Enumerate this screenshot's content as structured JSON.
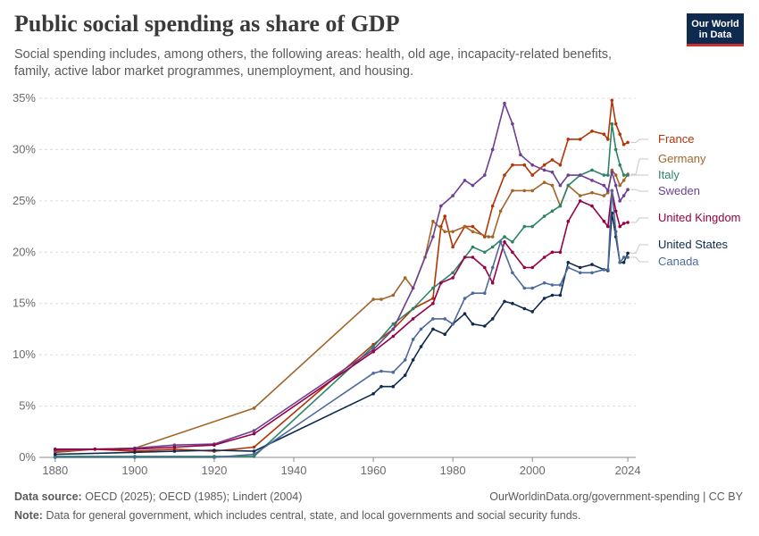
{
  "header": {
    "title": "Public social spending as share of GDP",
    "subtitle": "Social spending includes, among others, the following areas: health, old age, incapacity-related benefits, family, active labor market programmes, unemployment, and housing."
  },
  "logo": {
    "line1": "Our World",
    "line2": "in Data"
  },
  "footer": {
    "source_label": "Data source:",
    "source_text": "OECD (2025); OECD (1985); Lindert (2004)",
    "url": "OurWorldinData.org/government-spending | CC BY",
    "note_label": "Note:",
    "note_text": "Data for general government, which includes central, state, and local governments and social security funds."
  },
  "chart_data": {
    "type": "line",
    "title": "Public social spending as share of GDP",
    "xlabel": "",
    "ylabel": "",
    "xlim": [
      1876,
      2026
    ],
    "ylim": [
      0,
      35
    ],
    "x_ticks": [
      1880,
      1900,
      1920,
      1940,
      1960,
      1980,
      2000,
      2024
    ],
    "y_ticks": [
      0,
      5,
      10,
      15,
      20,
      25,
      30,
      35
    ],
    "y_tick_labels": [
      "0%",
      "5%",
      "10%",
      "15%",
      "20%",
      "25%",
      "30%",
      "35%"
    ],
    "grid": "horizontal-dashed",
    "series": [
      {
        "name": "France",
        "color": "#b13507",
        "points": [
          [
            1880,
            0.5
          ],
          [
            1890,
            0.8
          ],
          [
            1900,
            0.6
          ],
          [
            1910,
            0.8
          ],
          [
            1920,
            0.6
          ],
          [
            1930,
            1.0
          ],
          [
            1960,
            11.0
          ],
          [
            1965,
            12.5
          ],
          [
            1970,
            14.5
          ],
          [
            1975,
            15.5
          ],
          [
            1977,
            22.5
          ],
          [
            1978,
            23.5
          ],
          [
            1980,
            20.5
          ],
          [
            1983,
            22.5
          ],
          [
            1985,
            22.5
          ],
          [
            1988,
            21.5
          ],
          [
            1990,
            24.5
          ],
          [
            1993,
            27.5
          ],
          [
            1995,
            28.5
          ],
          [
            1998,
            28.5
          ],
          [
            2000,
            27.5
          ],
          [
            2003,
            28.5
          ],
          [
            2005,
            29.0
          ],
          [
            2007,
            28.5
          ],
          [
            2009,
            31.0
          ],
          [
            2012,
            31.0
          ],
          [
            2015,
            31.8
          ],
          [
            2018,
            31.5
          ],
          [
            2019,
            31.0
          ],
          [
            2020,
            34.8
          ],
          [
            2021,
            32.5
          ],
          [
            2022,
            31.5
          ],
          [
            2023,
            30.5
          ],
          [
            2024,
            30.7
          ]
        ]
      },
      {
        "name": "Germany",
        "color": "#a2652a",
        "points": [
          [
            1880,
            0.6
          ],
          [
            1890,
            0.8
          ],
          [
            1900,
            0.9
          ],
          [
            1930,
            4.8
          ],
          [
            1960,
            15.4
          ],
          [
            1962,
            15.4
          ],
          [
            1965,
            15.8
          ],
          [
            1968,
            17.5
          ],
          [
            1970,
            16.5
          ],
          [
            1973,
            19.5
          ],
          [
            1975,
            23.0
          ],
          [
            1978,
            22.0
          ],
          [
            1980,
            22.0
          ],
          [
            1983,
            22.5
          ],
          [
            1985,
            22.0
          ],
          [
            1989,
            21.5
          ],
          [
            1990,
            21.5
          ],
          [
            1992,
            24.0
          ],
          [
            1995,
            26.0
          ],
          [
            1998,
            26.0
          ],
          [
            2000,
            26.0
          ],
          [
            2003,
            26.8
          ],
          [
            2005,
            26.5
          ],
          [
            2007,
            24.5
          ],
          [
            2009,
            26.5
          ],
          [
            2012,
            25.5
          ],
          [
            2015,
            25.8
          ],
          [
            2018,
            25.5
          ],
          [
            2019,
            25.8
          ],
          [
            2020,
            28.0
          ],
          [
            2021,
            27.5
          ],
          [
            2022,
            26.5
          ],
          [
            2023,
            27.0
          ],
          [
            2024,
            27.6
          ]
        ]
      },
      {
        "name": "Italy",
        "color": "#2c8465",
        "points": [
          [
            1880,
            0.1
          ],
          [
            1900,
            0.1
          ],
          [
            1920,
            0.1
          ],
          [
            1930,
            0.1
          ],
          [
            1960,
            10.8
          ],
          [
            1965,
            13.0
          ],
          [
            1970,
            14.5
          ],
          [
            1975,
            16.5
          ],
          [
            1980,
            18.0
          ],
          [
            1985,
            20.5
          ],
          [
            1988,
            20.0
          ],
          [
            1990,
            20.5
          ],
          [
            1993,
            21.5
          ],
          [
            1995,
            21.0
          ],
          [
            1998,
            22.5
          ],
          [
            2000,
            22.5
          ],
          [
            2003,
            23.5
          ],
          [
            2005,
            24.0
          ],
          [
            2007,
            24.5
          ],
          [
            2009,
            26.5
          ],
          [
            2012,
            27.5
          ],
          [
            2015,
            28.0
          ],
          [
            2018,
            27.5
          ],
          [
            2019,
            27.5
          ],
          [
            2020,
            32.5
          ],
          [
            2021,
            30.0
          ],
          [
            2022,
            28.5
          ],
          [
            2023,
            27.5
          ],
          [
            2024,
            27.5
          ]
        ]
      },
      {
        "name": "Sweden",
        "color": "#6d3e91",
        "points": [
          [
            1880,
            0.7
          ],
          [
            1890,
            0.8
          ],
          [
            1900,
            0.9
          ],
          [
            1910,
            1.2
          ],
          [
            1920,
            1.3
          ],
          [
            1930,
            2.6
          ],
          [
            1960,
            10.5
          ],
          [
            1965,
            12.5
          ],
          [
            1970,
            16.5
          ],
          [
            1975,
            21.5
          ],
          [
            1977,
            24.5
          ],
          [
            1980,
            25.5
          ],
          [
            1983,
            27.0
          ],
          [
            1985,
            26.5
          ],
          [
            1988,
            27.5
          ],
          [
            1990,
            30.0
          ],
          [
            1993,
            34.5
          ],
          [
            1995,
            32.5
          ],
          [
            1997,
            29.5
          ],
          [
            2000,
            28.5
          ],
          [
            2003,
            28.0
          ],
          [
            2005,
            27.8
          ],
          [
            2007,
            26.5
          ],
          [
            2009,
            27.5
          ],
          [
            2012,
            27.5
          ],
          [
            2015,
            27.0
          ],
          [
            2018,
            26.5
          ],
          [
            2019,
            26.0
          ],
          [
            2020,
            27.8
          ],
          [
            2021,
            26.5
          ],
          [
            2022,
            25.0
          ],
          [
            2023,
            25.5
          ],
          [
            2024,
            26.1
          ]
        ]
      },
      {
        "name": "United Kingdom",
        "color": "#970046",
        "points": [
          [
            1880,
            0.8
          ],
          [
            1890,
            0.8
          ],
          [
            1900,
            0.8
          ],
          [
            1910,
            1.0
          ],
          [
            1920,
            1.2
          ],
          [
            1930,
            2.3
          ],
          [
            1960,
            10.3
          ],
          [
            1965,
            11.8
          ],
          [
            1970,
            13.5
          ],
          [
            1975,
            15.0
          ],
          [
            1977,
            17.0
          ],
          [
            1980,
            17.5
          ],
          [
            1983,
            19.5
          ],
          [
            1985,
            19.5
          ],
          [
            1988,
            18.5
          ],
          [
            1990,
            17.0
          ],
          [
            1993,
            21.0
          ],
          [
            1995,
            20.0
          ],
          [
            1998,
            18.5
          ],
          [
            2000,
            18.5
          ],
          [
            2003,
            19.5
          ],
          [
            2005,
            20.0
          ],
          [
            2007,
            20.0
          ],
          [
            2009,
            23.0
          ],
          [
            2012,
            25.0
          ],
          [
            2015,
            24.5
          ],
          [
            2018,
            23.0
          ],
          [
            2019,
            22.5
          ],
          [
            2020,
            26.0
          ],
          [
            2021,
            24.0
          ],
          [
            2022,
            22.5
          ],
          [
            2023,
            22.8
          ],
          [
            2024,
            22.9
          ]
        ]
      },
      {
        "name": "United States",
        "color": "#0f2a4f",
        "points": [
          [
            1880,
            0.3
          ],
          [
            1900,
            0.5
          ],
          [
            1910,
            0.6
          ],
          [
            1920,
            0.7
          ],
          [
            1930,
            0.6
          ],
          [
            1960,
            6.2
          ],
          [
            1962,
            6.9
          ],
          [
            1965,
            6.9
          ],
          [
            1968,
            8.0
          ],
          [
            1970,
            9.5
          ],
          [
            1972,
            10.8
          ],
          [
            1975,
            12.5
          ],
          [
            1978,
            12.0
          ],
          [
            1980,
            13.0
          ],
          [
            1983,
            14.0
          ],
          [
            1985,
            13.0
          ],
          [
            1988,
            12.8
          ],
          [
            1990,
            13.5
          ],
          [
            1993,
            15.2
          ],
          [
            1995,
            15.0
          ],
          [
            1998,
            14.5
          ],
          [
            2000,
            14.2
          ],
          [
            2003,
            15.5
          ],
          [
            2005,
            15.8
          ],
          [
            2007,
            15.8
          ],
          [
            2009,
            19.0
          ],
          [
            2012,
            18.5
          ],
          [
            2015,
            18.8
          ],
          [
            2018,
            18.3
          ],
          [
            2019,
            18.2
          ],
          [
            2020,
            23.8
          ],
          [
            2021,
            21.5
          ],
          [
            2022,
            19.0
          ],
          [
            2023,
            19.0
          ],
          [
            2024,
            19.9
          ]
        ]
      },
      {
        "name": "Canada",
        "color": "#4c6a9c",
        "points": [
          [
            1880,
            0.0
          ],
          [
            1900,
            0.0
          ],
          [
            1920,
            0.0
          ],
          [
            1930,
            0.3
          ],
          [
            1960,
            8.2
          ],
          [
            1962,
            8.4
          ],
          [
            1965,
            8.3
          ],
          [
            1968,
            9.5
          ],
          [
            1970,
            11.5
          ],
          [
            1972,
            12.5
          ],
          [
            1975,
            13.5
          ],
          [
            1978,
            13.5
          ],
          [
            1980,
            13.0
          ],
          [
            1983,
            15.5
          ],
          [
            1985,
            16.0
          ],
          [
            1988,
            16.0
          ],
          [
            1990,
            18.5
          ],
          [
            1992,
            21.0
          ],
          [
            1995,
            18.0
          ],
          [
            1998,
            16.5
          ],
          [
            2000,
            16.5
          ],
          [
            2003,
            17.0
          ],
          [
            2005,
            16.8
          ],
          [
            2007,
            16.8
          ],
          [
            2009,
            18.5
          ],
          [
            2012,
            18.0
          ],
          [
            2015,
            18.0
          ],
          [
            2018,
            18.3
          ],
          [
            2019,
            18.3
          ],
          [
            2020,
            26.0
          ],
          [
            2021,
            22.0
          ],
          [
            2022,
            19.0
          ],
          [
            2023,
            19.5
          ],
          [
            2024,
            19.5
          ]
        ]
      }
    ],
    "legend": [
      {
        "name": "France",
        "at": 30.6
      },
      {
        "name": "Germany",
        "at": 28.0
      },
      {
        "name": "Italy",
        "at": 27.4
      },
      {
        "name": "Sweden",
        "at": 26.1
      },
      {
        "name": "United Kingdom",
        "at": 22.9
      },
      {
        "name": "United States",
        "at": 19.9
      },
      {
        "name": "Canada",
        "at": 19.5
      }
    ]
  }
}
